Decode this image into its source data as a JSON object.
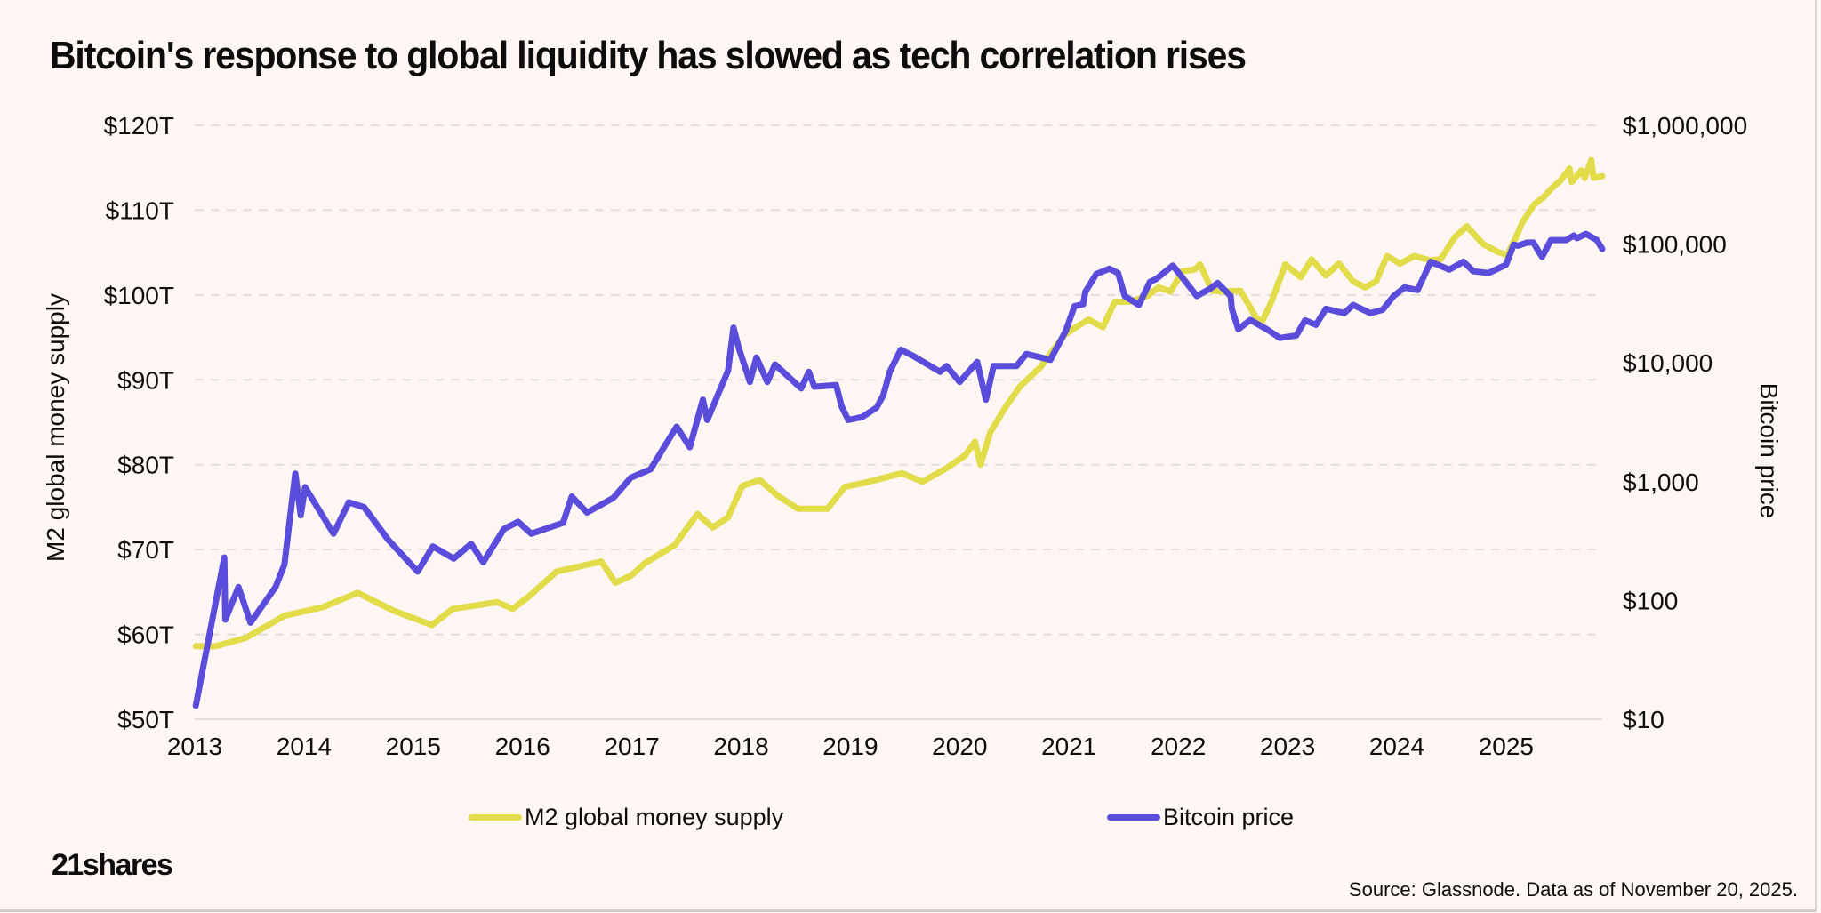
{
  "title": "Bitcoin's response to global liquidity has slowed as tech correlation rises",
  "logo": "21shares",
  "source": "Source: Glassnode. Data as of November 20, 2025.",
  "colors": {
    "background": "#fdf6f3",
    "m2": "#e3dc4a",
    "bitcoin": "#5b4ddb",
    "grid": "#e4dedb"
  },
  "legend": [
    {
      "label": "M2 global money supply",
      "color": "#e3dc4a"
    },
    {
      "label": "Bitcoin price",
      "color": "#5b4ddb"
    }
  ],
  "chart_data": {
    "type": "line",
    "title": "Bitcoin's response to global liquidity has slowed as tech correlation rises",
    "xlabel": "",
    "ylabel": "M2 global money supply",
    "y2label": "Bitcoin price",
    "xlim": [
      2013.0,
      2025.88
    ],
    "ylim": [
      50,
      120
    ],
    "y2lim": [
      10,
      1000000
    ],
    "y2scale": "log",
    "grid": true,
    "legend_position": "bottom",
    "x_ticks": [
      "2013",
      "2014",
      "2015",
      "2016",
      "2017",
      "2018",
      "2019",
      "2020",
      "2021",
      "2022",
      "2023",
      "2024",
      "2025"
    ],
    "y_ticks": [
      "$50T",
      "$60T",
      "$70T",
      "$80T",
      "$90T",
      "$100T",
      "$110T",
      "$120T"
    ],
    "y2_ticks": [
      "$10",
      "$100",
      "$1,000",
      "$10,000",
      "$100,000",
      "$1,000,000"
    ],
    "series": [
      {
        "name": "M2 global money supply",
        "axis": "left",
        "unit": "trillion USD",
        "x": [
          2013.01,
          2013.19,
          2013.47,
          2013.82,
          2014.17,
          2014.49,
          2014.82,
          2015.17,
          2015.36,
          2015.77,
          2015.91,
          2016.07,
          2016.31,
          2016.72,
          2016.85,
          2016.99,
          2017.12,
          2017.39,
          2017.6,
          2017.74,
          2017.88,
          2018.01,
          2018.17,
          2018.33,
          2018.52,
          2018.79,
          2018.95,
          2019.14,
          2019.47,
          2019.66,
          2019.88,
          2020.05,
          2020.14,
          2020.19,
          2020.28,
          2020.41,
          2020.55,
          2020.74,
          2020.96,
          2021.04,
          2021.18,
          2021.31,
          2021.42,
          2021.56,
          2021.72,
          2021.82,
          2021.93,
          2022.04,
          2022.15,
          2022.2,
          2022.31,
          2022.41,
          2022.57,
          2022.71,
          2022.76,
          2022.84,
          2022.98,
          2023.12,
          2023.22,
          2023.35,
          2023.47,
          2023.6,
          2023.71,
          2023.81,
          2023.91,
          2024.03,
          2024.16,
          2024.3,
          2024.4,
          2024.53,
          2024.64,
          2024.79,
          2024.92,
          2025.01,
          2025.09,
          2025.15,
          2025.26,
          2025.34,
          2025.42,
          2025.5,
          2025.58,
          2025.6,
          2025.69,
          2025.72,
          2025.78,
          2025.8,
          2025.88
        ],
        "values": [
          58.6,
          58.6,
          59.6,
          62.2,
          63.2,
          64.9,
          62.8,
          61.1,
          63.0,
          63.8,
          63.0,
          64.6,
          67.4,
          68.6,
          66.1,
          66.9,
          68.4,
          70.5,
          74.2,
          72.6,
          73.8,
          77.5,
          78.2,
          76.4,
          74.8,
          74.8,
          77.4,
          77.9,
          79.0,
          78.0,
          79.6,
          81.1,
          82.7,
          80.0,
          83.8,
          86.6,
          89.2,
          91.5,
          95.3,
          96.0,
          97.1,
          96.2,
          99.2,
          99.2,
          99.9,
          100.9,
          100.4,
          102.8,
          103.0,
          103.6,
          100.5,
          100.4,
          100.5,
          97.4,
          96.7,
          98.8,
          103.6,
          102.1,
          104.2,
          102.3,
          103.7,
          101.6,
          100.9,
          101.6,
          104.6,
          103.7,
          104.6,
          104.1,
          104.2,
          106.8,
          108.1,
          106.0,
          105.1,
          104.7,
          106.8,
          108.6,
          110.7,
          111.5,
          112.6,
          113.5,
          114.9,
          113.3,
          114.7,
          113.8,
          115.9,
          113.8,
          114.0
        ]
      },
      {
        "name": "Bitcoin price",
        "axis": "right",
        "unit": "USD",
        "x": [
          2013.01,
          2013.27,
          2013.28,
          2013.4,
          2013.51,
          2013.74,
          2013.82,
          2013.92,
          2013.97,
          2014.01,
          2014.27,
          2014.41,
          2014.55,
          2014.77,
          2015.04,
          2015.18,
          2015.37,
          2015.53,
          2015.64,
          2015.83,
          2015.96,
          2016.08,
          2016.37,
          2016.45,
          2016.59,
          2016.83,
          2016.99,
          2017.17,
          2017.41,
          2017.53,
          2017.65,
          2017.69,
          2017.88,
          2017.93,
          2017.98,
          2018.08,
          2018.14,
          2018.24,
          2018.31,
          2018.55,
          2018.62,
          2018.67,
          2018.87,
          2018.92,
          2018.98,
          2019.11,
          2019.24,
          2019.3,
          2019.36,
          2019.46,
          2019.57,
          2019.82,
          2019.88,
          2020.0,
          2020.16,
          2020.24,
          2020.31,
          2020.52,
          2020.61,
          2020.83,
          2020.97,
          2021.05,
          2021.13,
          2021.15,
          2021.25,
          2021.37,
          2021.45,
          2021.51,
          2021.64,
          2021.74,
          2021.8,
          2021.95,
          2022.07,
          2022.17,
          2022.29,
          2022.36,
          2022.48,
          2022.49,
          2022.55,
          2022.66,
          2022.81,
          2022.93,
          2023.08,
          2023.16,
          2023.26,
          2023.35,
          2023.52,
          2023.6,
          2023.76,
          2023.87,
          2023.97,
          2024.07,
          2024.19,
          2024.31,
          2024.48,
          2024.61,
          2024.7,
          2024.84,
          2025.0,
          2025.07,
          2025.11,
          2025.19,
          2025.25,
          2025.3,
          2025.33,
          2025.41,
          2025.55,
          2025.62,
          2025.65,
          2025.73,
          2025.83,
          2025.88
        ],
        "values": [
          13,
          230,
          69,
          130,
          65,
          130,
          200,
          1170,
          520,
          900,
          365,
          670,
          610,
          325,
          175,
          285,
          225,
          300,
          210,
          400,
          460,
          365,
          450,
          750,
          550,
          730,
          1080,
          1270,
          2900,
          1950,
          4900,
          3300,
          8600,
          19800,
          13200,
          6900,
          11100,
          6900,
          9700,
          6100,
          8400,
          6300,
          6500,
          4300,
          3300,
          3500,
          4200,
          5300,
          8400,
          12900,
          11500,
          8400,
          9400,
          6900,
          10200,
          4900,
          9400,
          9400,
          11900,
          10600,
          18500,
          30000,
          31200,
          39700,
          56000,
          62000,
          57000,
          36500,
          30700,
          48000,
          51000,
          66000,
          48000,
          36500,
          42000,
          47000,
          36500,
          28500,
          19200,
          23000,
          19200,
          16200,
          17000,
          22800,
          20900,
          28500,
          26200,
          30700,
          26200,
          28000,
          36500,
          43200,
          41000,
          71000,
          61000,
          71000,
          59000,
          57000,
          67000,
          99000,
          97000,
          103000,
          103000,
          86000,
          78000,
          108000,
          108000,
          118000,
          112000,
          122000,
          108000,
          91000
        ]
      }
    ]
  }
}
